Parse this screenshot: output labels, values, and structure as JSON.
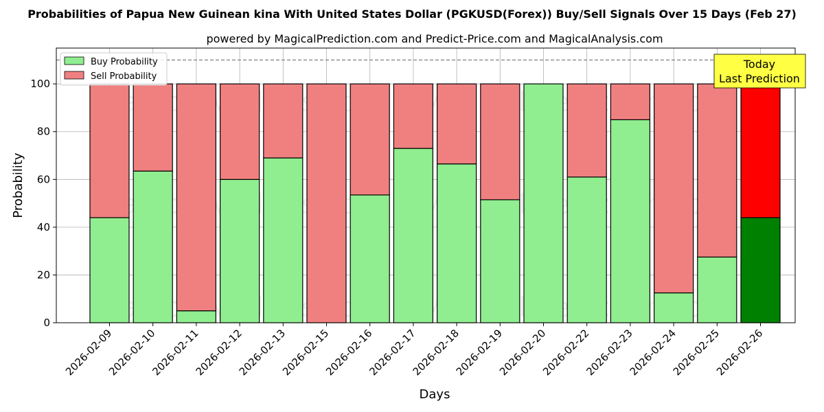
{
  "chart_data": {
    "type": "bar",
    "title": "Probabilities of Papua New Guinean kina With United States Dollar (PGKUSD(Forex)) Buy/Sell Signals Over 15 Days (Feb 27)",
    "subtitle": "powered by MagicalPrediction.com and Predict-Price.com and MagicalAnalysis.com",
    "xlabel": "Days",
    "ylabel": "Probability",
    "ylim": [
      0,
      115
    ],
    "yticks": [
      0,
      20,
      40,
      60,
      80,
      100
    ],
    "grid": true,
    "stacked": true,
    "categories": [
      "2026-02-09",
      "2026-02-10",
      "2026-02-11",
      "2026-02-12",
      "2026-02-13",
      "2026-02-15",
      "2026-02-16",
      "2026-02-17",
      "2026-02-18",
      "2026-02-19",
      "2026-02-20",
      "2026-02-22",
      "2026-02-23",
      "2026-02-24",
      "2026-02-25",
      "2026-02-26"
    ],
    "series": [
      {
        "name": "Buy Probability",
        "color": "#90ee90",
        "highlight_color": "#008000",
        "values": [
          44,
          63.5,
          5,
          60,
          69,
          0,
          53.5,
          73,
          66.5,
          51.5,
          100,
          61,
          85,
          12.5,
          27.5,
          44
        ]
      },
      {
        "name": "Sell Probability",
        "color": "#f08080",
        "highlight_color": "#ff0000",
        "values": [
          56,
          36.5,
          95,
          40,
          31,
          100,
          46.5,
          27,
          33.5,
          48.5,
          0,
          39,
          15,
          87.5,
          72.5,
          56
        ]
      }
    ],
    "highlight_index": 15,
    "reference_line": {
      "y": 110,
      "style": "dashed",
      "color": "#808080"
    },
    "legend": {
      "placement": "top-left"
    },
    "annotation": {
      "lines": [
        "Today",
        "Last Prediction"
      ],
      "placement": "top-right",
      "bg": "#ffff44"
    },
    "watermarks": [
      "MagicalAnalysis.com",
      "MagicalPrediction.com"
    ]
  }
}
